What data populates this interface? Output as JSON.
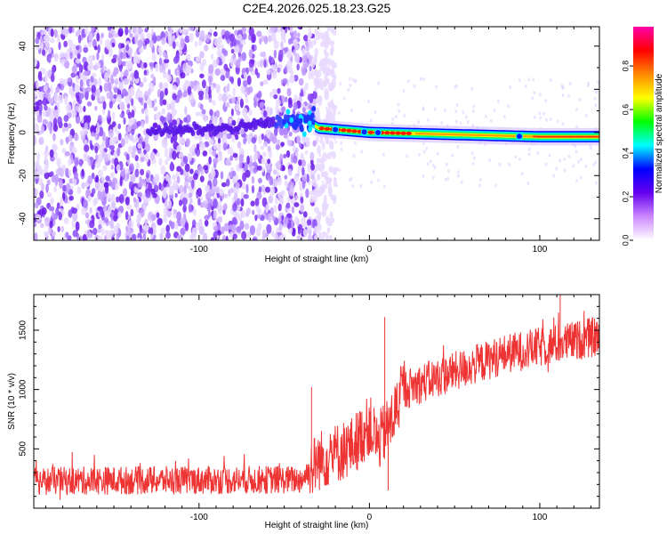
{
  "figure_title": "C2E4.2026.025.18.23.G25",
  "chart_data": [
    {
      "type": "heatmap",
      "title": "C2E4.2026.025.18.23.G25",
      "xlabel": "Height of straight line (km)",
      "ylabel": "Frequency (Hz)",
      "xlim": [
        -197,
        135
      ],
      "ylim": [
        -50,
        49
      ],
      "x_ticks": [
        -100,
        0,
        100
      ],
      "x_tick_labels": [
        "-100",
        "0",
        "100"
      ],
      "y_ticks": [
        -40,
        -20,
        0,
        20,
        40
      ],
      "y_tick_labels": [
        "-40",
        "-20",
        "0",
        "20",
        "40"
      ],
      "colorbar": {
        "label": "Normalized spectral amplitude",
        "range": [
          0,
          0.98
        ],
        "ticks": [
          0.0,
          0.2,
          0.4,
          0.6,
          0.8
        ],
        "tick_labels": [
          "0.0",
          "0.2",
          "0.4",
          "0.6",
          "0.8"
        ],
        "colormap": [
          "#ffffff",
          "#cc88ff",
          "#6600ee",
          "#0000ff",
          "#00ffff",
          "#00ff00",
          "#ffff00",
          "#ff8800",
          "#ff0000",
          "#ff00aa"
        ]
      },
      "features": {
        "noise_region_km": [
          -197,
          -32
        ],
        "signal_start_km": -32,
        "signal_frequency_hz": [
          {
            "x": -110,
            "f": 1
          },
          {
            "x": -80,
            "f": 2
          },
          {
            "x": -55,
            "f": 5
          },
          {
            "x": -40,
            "f": 7
          },
          {
            "x": -30,
            "f": 2
          },
          {
            "x": 0,
            "f": 0
          },
          {
            "x": 50,
            "f": -1
          },
          {
            "x": 100,
            "f": -2
          },
          {
            "x": 135,
            "f": -2
          }
        ]
      }
    },
    {
      "type": "line",
      "xlabel": "Height of straight line (km)",
      "ylabel": "SNR (10 * v/v)",
      "xlim": [
        -197,
        135
      ],
      "ylim": [
        0,
        1800
      ],
      "x_ticks": [
        -100,
        0,
        100
      ],
      "x_tick_labels": [
        "-100",
        "0",
        "100"
      ],
      "y_ticks": [
        500,
        1000,
        1500
      ],
      "y_tick_labels": [
        "500",
        "1000",
        "1500"
      ],
      "series": [
        {
          "name": "SNR",
          "color": "#ee3333",
          "trend": {
            "x": [
              -197,
              -40,
              -30,
              -10,
              0,
              5,
              12,
              20,
              40,
              80,
              135
            ],
            "y": [
              230,
              240,
              400,
              520,
              700,
              550,
              700,
              1000,
              1100,
              1300,
              1450
            ]
          },
          "spikes": [
            {
              "x": 9,
              "y": 1610
            },
            {
              "x": -34,
              "y": 1020
            },
            {
              "x": 112,
              "y": 1800
            },
            {
              "x": 11,
              "y": 150
            }
          ]
        }
      ]
    }
  ]
}
